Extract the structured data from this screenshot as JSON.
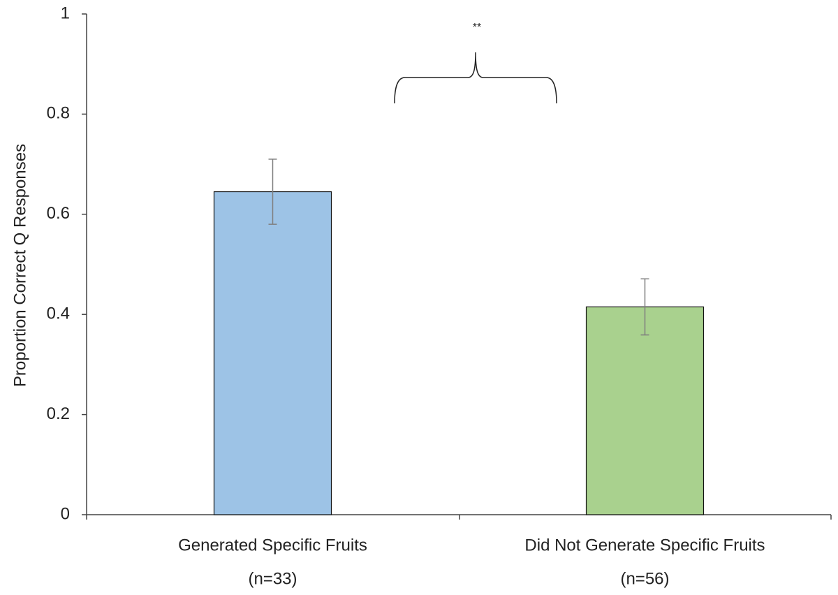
{
  "chart_data": {
    "type": "bar",
    "y_label": "Proportion Correct Q Responses",
    "categories": [
      [
        "Generated Specific Fruits",
        "(n=33)"
      ],
      [
        "Did Not Generate Specific Fruits",
        "(n=56)"
      ]
    ],
    "values": [
      0.645,
      0.415
    ],
    "errors": [
      0.065,
      0.056
    ],
    "colors": [
      "#9dc3e6",
      "#a9d18e"
    ],
    "error_color": "#7f7f7f",
    "ylim": [
      0,
      1
    ],
    "yticks": [
      0,
      0.2,
      0.4,
      0.6,
      0.8,
      1
    ],
    "grid": false,
    "annotation": "**"
  }
}
